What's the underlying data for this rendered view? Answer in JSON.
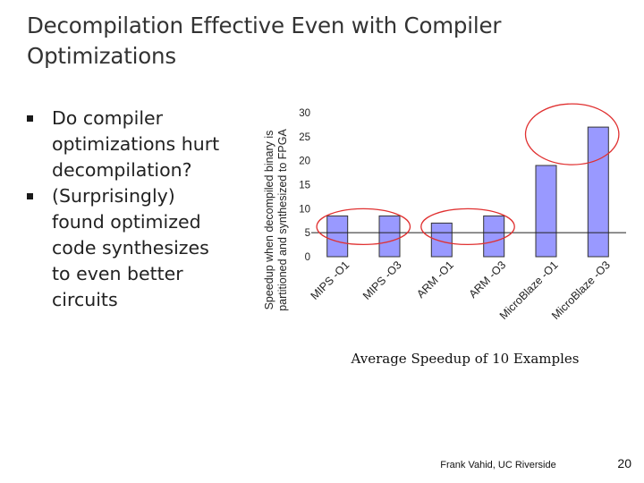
{
  "slide": {
    "title": "Decompilation Effective Even with Compiler Optimizations",
    "bullets": [
      {
        "text": "Do compiler optimizations hurt decompilation?"
      },
      {
        "text": "(Surprisingly) found optimized code synthesizes to even better circuits"
      }
    ],
    "footer": "Frank Vahid, UC Riverside",
    "page_number": "20"
  },
  "colors": {
    "bar_fill": "#9999ff",
    "bar_stroke": "#333333",
    "highlight": "#e03030",
    "axis": "#222222"
  },
  "chart_data": {
    "type": "bar",
    "title": "",
    "subtitle": "Average Speedup of 10 Examples",
    "ylabel": "Speedup when decompiled binary is partitioned and synthesized to FPGA",
    "ylabel_lines": [
      "Speedup when decompiled binary is",
      "partitioned and synthesized to FPGA"
    ],
    "xlabel": "",
    "ylim": [
      0,
      30
    ],
    "yticks": [
      "0",
      "5",
      "10",
      "15",
      "20",
      "25",
      "30"
    ],
    "categories": [
      "MIPS -O1",
      "MIPS -O3",
      "ARM -O1",
      "ARM -O3",
      "MicroBlaze -O1",
      "MicroBlaze -O3"
    ],
    "values": [
      8.5,
      8.5,
      7,
      8.5,
      19,
      27
    ],
    "reference_line": 5,
    "highlight_groups": [
      [
        0,
        1
      ],
      [
        2,
        3
      ],
      [
        4,
        5
      ]
    ]
  }
}
